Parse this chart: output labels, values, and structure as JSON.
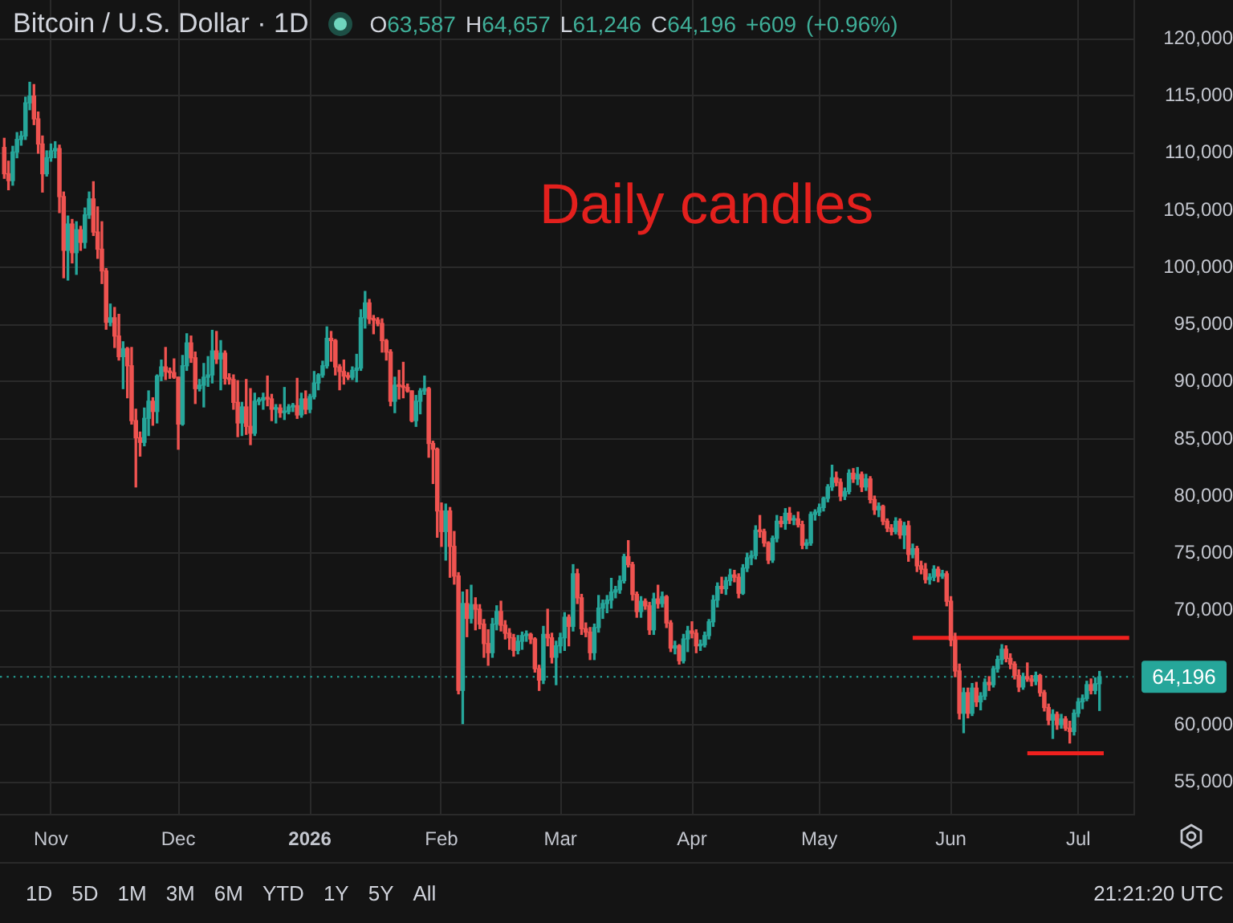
{
  "chart_data": {
    "type": "candlestick",
    "title": "Bitcoin / U.S. Dollar · 1D",
    "subtitle": "O63,587 H64,657 L61,246 C64,196 +609 (+0.96%)",
    "x": [
      "2025-10-21",
      "2025-10-22",
      "2025-10-23",
      "2025-10-24",
      "2025-10-25",
      "2025-10-26",
      "2025-10-27",
      "2025-10-28",
      "2025-10-29",
      "2025-10-30",
      "2025-10-31",
      "2025-11-01",
      "2025-11-02",
      "2025-11-03",
      "2025-11-04",
      "2025-11-05",
      "2025-11-06",
      "2025-11-07",
      "2025-11-08",
      "2025-11-09",
      "2025-11-10",
      "2025-11-11",
      "2025-11-12",
      "2025-11-13",
      "2025-11-14",
      "2025-11-15",
      "2025-11-16",
      "2025-11-17",
      "2025-11-18",
      "2025-11-19",
      "2025-11-20",
      "2025-11-21",
      "2025-11-22",
      "2025-11-23",
      "2025-11-24",
      "2025-11-25",
      "2025-11-26",
      "2025-11-27",
      "2025-11-28",
      "2025-11-29",
      "2025-11-30",
      "2025-12-01",
      "2025-12-02",
      "2025-12-03",
      "2025-12-04",
      "2025-12-05",
      "2025-12-06",
      "2025-12-07",
      "2025-12-08",
      "2025-12-09",
      "2025-12-10",
      "2025-12-11",
      "2025-12-12",
      "2025-12-13",
      "2025-12-14",
      "2025-12-15",
      "2025-12-16",
      "2025-12-17",
      "2025-12-18",
      "2025-12-19",
      "2025-12-20",
      "2025-12-21",
      "2025-12-22",
      "2025-12-23",
      "2025-12-24",
      "2025-12-25",
      "2025-12-26",
      "2025-12-27",
      "2025-12-28",
      "2025-12-29",
      "2025-12-30",
      "2025-12-31",
      "2026-01-01",
      "2026-01-02",
      "2026-01-03",
      "2026-01-04",
      "2026-01-05",
      "2026-01-06",
      "2026-01-07",
      "2026-01-08",
      "2026-01-09",
      "2026-01-10",
      "2026-01-11",
      "2026-01-12",
      "2026-01-13",
      "2026-01-14",
      "2026-01-15",
      "2026-01-16",
      "2026-01-17",
      "2026-01-18",
      "2026-01-19",
      "2026-01-20",
      "2026-01-21",
      "2026-01-22",
      "2026-01-23",
      "2026-01-24",
      "2026-01-25",
      "2026-01-26",
      "2026-01-27",
      "2026-01-28",
      "2026-01-29",
      "2026-01-30",
      "2026-01-31",
      "2026-02-01",
      "2026-02-02",
      "2026-02-03",
      "2026-02-04",
      "2026-02-05",
      "2026-02-06",
      "2026-02-07",
      "2026-02-08",
      "2026-02-09",
      "2026-02-10",
      "2026-02-11",
      "2026-02-12",
      "2026-02-13",
      "2026-02-14",
      "2026-02-15",
      "2026-02-16",
      "2026-02-17",
      "2026-02-18",
      "2026-02-19",
      "2026-02-20",
      "2026-02-21",
      "2026-02-22",
      "2026-02-23",
      "2026-02-24",
      "2026-02-25",
      "2026-02-26",
      "2026-02-27",
      "2026-02-28",
      "2026-03-01",
      "2026-03-02",
      "2026-03-03",
      "2026-03-04",
      "2026-03-05",
      "2026-03-06",
      "2026-03-07",
      "2026-03-08",
      "2026-03-09",
      "2026-03-10",
      "2026-03-11",
      "2026-03-12",
      "2026-03-13",
      "2026-03-14",
      "2026-03-15",
      "2026-03-16",
      "2026-03-17",
      "2026-03-18",
      "2026-03-19",
      "2026-03-20",
      "2026-03-21",
      "2026-03-22",
      "2026-03-23",
      "2026-03-24",
      "2026-03-25",
      "2026-03-26",
      "2026-03-27",
      "2026-03-28",
      "2026-03-29",
      "2026-03-30",
      "2026-03-31",
      "2026-04-01",
      "2026-04-02",
      "2026-04-03",
      "2026-04-04",
      "2026-04-05",
      "2026-04-06",
      "2026-04-07",
      "2026-04-08",
      "2026-04-09",
      "2026-04-10",
      "2026-04-11",
      "2026-04-12",
      "2026-04-13",
      "2026-04-14",
      "2026-04-15",
      "2026-04-16",
      "2026-04-17",
      "2026-04-18",
      "2026-04-19",
      "2026-04-20",
      "2026-04-21",
      "2026-04-22",
      "2026-04-23",
      "2026-04-24",
      "2026-04-25",
      "2026-04-26",
      "2026-04-27",
      "2026-04-28",
      "2026-04-29",
      "2026-04-30",
      "2026-05-01",
      "2026-05-02",
      "2026-05-03",
      "2026-05-04",
      "2026-05-05",
      "2026-05-06",
      "2026-05-07",
      "2026-05-08",
      "2026-05-09",
      "2026-05-10",
      "2026-05-11",
      "2026-05-12",
      "2026-05-13",
      "2026-05-14",
      "2026-05-15",
      "2026-05-16",
      "2026-05-17",
      "2026-05-18",
      "2026-05-19",
      "2026-05-20",
      "2026-05-21",
      "2026-05-22",
      "2026-05-23",
      "2026-05-24",
      "2026-05-25",
      "2026-05-26",
      "2026-05-27",
      "2026-05-28",
      "2026-05-29",
      "2026-05-30",
      "2026-05-31",
      "2026-06-01",
      "2026-06-02",
      "2026-06-03",
      "2026-06-04",
      "2026-06-05",
      "2026-06-06",
      "2026-06-07",
      "2026-06-08",
      "2026-06-09",
      "2026-06-10",
      "2026-06-11",
      "2026-06-12",
      "2026-06-13",
      "2026-06-14",
      "2026-06-15",
      "2026-06-16",
      "2026-06-17",
      "2026-06-18",
      "2026-06-19",
      "2026-06-20",
      "2026-06-21",
      "2026-06-22",
      "2026-06-23",
      "2026-06-24",
      "2026-06-25",
      "2026-06-26",
      "2026-06-27",
      "2026-06-28",
      "2026-06-29",
      "2026-06-30",
      "2026-07-01",
      "2026-07-02",
      "2026-07-03",
      "2026-07-04",
      "2026-07-05",
      "2026-07-06"
    ],
    "ohlc": [
      [
        110500,
        111300,
        107800,
        108200
      ],
      [
        108200,
        109300,
        106800,
        107600
      ],
      [
        107600,
        110600,
        107200,
        110100
      ],
      [
        110100,
        111800,
        109600,
        111200
      ],
      [
        111200,
        111900,
        110700,
        111500
      ],
      [
        111500,
        114900,
        111200,
        114400
      ],
      [
        114400,
        116200,
        113800,
        115000
      ],
      [
        115000,
        116000,
        112500,
        113000
      ],
      [
        113000,
        113600,
        110000,
        110800
      ],
      [
        110800,
        111500,
        106600,
        108200
      ],
      [
        108200,
        110200,
        108000,
        109600
      ],
      [
        109600,
        110800,
        109300,
        110200
      ],
      [
        110200,
        111000,
        109600,
        110400
      ],
      [
        110400,
        110700,
        104800,
        106200
      ],
      [
        106200,
        106600,
        99100,
        101500
      ],
      [
        101500,
        104500,
        98900,
        103800
      ],
      [
        103800,
        104200,
        100400,
        101300
      ],
      [
        101300,
        104000,
        99400,
        103300
      ],
      [
        103300,
        103600,
        101500,
        102200
      ],
      [
        102200,
        105200,
        101700,
        104600
      ],
      [
        104600,
        106600,
        104300,
        106000
      ],
      [
        106000,
        107500,
        102800,
        103100
      ],
      [
        103100,
        105300,
        100800,
        101600
      ],
      [
        101600,
        104000,
        98600,
        99700
      ],
      [
        99700,
        99900,
        94600,
        95200
      ],
      [
        95200,
        96800,
        94900,
        95600
      ],
      [
        95600,
        96500,
        93000,
        94000
      ],
      [
        94000,
        95900,
        91900,
        92200
      ],
      [
        92200,
        93500,
        89400,
        92900
      ],
      [
        92900,
        93000,
        88600,
        91400
      ],
      [
        91400,
        93000,
        86300,
        86600
      ],
      [
        86600,
        87600,
        80800,
        85100
      ],
      [
        85100,
        85600,
        83500,
        84700
      ],
      [
        84700,
        87700,
        84400,
        86800
      ],
      [
        86800,
        89200,
        85300,
        88300
      ],
      [
        88300,
        88600,
        86200,
        87400
      ],
      [
        87400,
        90600,
        86400,
        90500
      ],
      [
        90500,
        91900,
        90100,
        91300
      ],
      [
        91300,
        93000,
        90200,
        90900
      ],
      [
        90900,
        91200,
        90300,
        90800
      ],
      [
        90800,
        92000,
        90300,
        90400
      ],
      [
        90400,
        90400,
        84100,
        86300
      ],
      [
        86300,
        92300,
        86200,
        91400
      ],
      [
        91400,
        94200,
        91000,
        93400
      ],
      [
        93400,
        94000,
        91700,
        92100
      ],
      [
        92100,
        92600,
        88100,
        89400
      ],
      [
        89400,
        90200,
        89200,
        89700
      ],
      [
        89700,
        91600,
        87800,
        90400
      ],
      [
        90400,
        92200,
        89600,
        90600
      ],
      [
        90600,
        94500,
        89900,
        92700
      ],
      [
        92700,
        94400,
        91600,
        92000
      ],
      [
        92000,
        93600,
        89300,
        92500
      ],
      [
        92500,
        92700,
        89800,
        90300
      ],
      [
        90300,
        90700,
        89800,
        90200
      ],
      [
        90200,
        90600,
        87600,
        88200
      ],
      [
        88200,
        90100,
        85200,
        86400
      ],
      [
        86400,
        88200,
        85300,
        87800
      ],
      [
        87800,
        90200,
        85400,
        86100
      ],
      [
        86100,
        89400,
        84500,
        85500
      ],
      [
        85500,
        89000,
        85300,
        88300
      ],
      [
        88300,
        88600,
        88000,
        88400
      ],
      [
        88400,
        89000,
        87600,
        88600
      ],
      [
        88600,
        90500,
        87900,
        88500
      ],
      [
        88500,
        88900,
        86600,
        87600
      ],
      [
        87600,
        88000,
        86400,
        87700
      ],
      [
        87700,
        88000,
        86900,
        87300
      ],
      [
        87300,
        89500,
        86700,
        87400
      ],
      [
        87400,
        88000,
        87200,
        87800
      ],
      [
        87800,
        88100,
        87400,
        87900
      ],
      [
        87900,
        90300,
        86800,
        87100
      ],
      [
        87100,
        89000,
        86900,
        88500
      ],
      [
        88500,
        89200,
        87200,
        87600
      ],
      [
        87600,
        88900,
        87300,
        88700
      ],
      [
        88700,
        90900,
        88500,
        89900
      ],
      [
        89900,
        90700,
        89300,
        90600
      ],
      [
        90600,
        91800,
        90400,
        91400
      ],
      [
        91400,
        94800,
        91200,
        93800
      ],
      [
        93800,
        94400,
        91800,
        93600
      ],
      [
        93600,
        93700,
        90600,
        91300
      ],
      [
        91300,
        91500,
        89300,
        90900
      ],
      [
        90900,
        91900,
        89800,
        90500
      ],
      [
        90500,
        90800,
        90200,
        90400
      ],
      [
        90400,
        91300,
        90200,
        91000
      ],
      [
        91000,
        92400,
        90000,
        91200
      ],
      [
        91200,
        96300,
        91000,
        95600
      ],
      [
        95600,
        97900,
        94700,
        96900
      ],
      [
        96900,
        97200,
        95100,
        95500
      ],
      [
        95500,
        95800,
        94200,
        95400
      ],
      [
        95400,
        95600,
        94900,
        95100
      ],
      [
        95100,
        95500,
        92600,
        93600
      ],
      [
        93600,
        93700,
        91900,
        92600
      ],
      [
        92600,
        92800,
        87900,
        88300
      ],
      [
        88300,
        90400,
        87300,
        89700
      ],
      [
        89700,
        91000,
        88500,
        89600
      ],
      [
        89600,
        91700,
        88600,
        89500
      ],
      [
        89500,
        89800,
        89100,
        89200
      ],
      [
        89200,
        89200,
        86500,
        86600
      ],
      [
        86600,
        88800,
        86100,
        88300
      ],
      [
        88300,
        89400,
        87200,
        89200
      ],
      [
        89200,
        90500,
        88900,
        89400
      ],
      [
        89400,
        89500,
        83400,
        84600
      ],
      [
        84600,
        84800,
        81100,
        84100
      ],
      [
        84100,
        84200,
        76400,
        78700
      ],
      [
        78700,
        79400,
        75600,
        76900
      ],
      [
        76900,
        79300,
        74400,
        78700
      ],
      [
        78700,
        79000,
        72900,
        75600
      ],
      [
        75600,
        76900,
        72300,
        73000
      ],
      [
        73000,
        73300,
        62700,
        63000
      ],
      [
        63000,
        71600,
        60100,
        70600
      ],
      [
        70600,
        71800,
        67700,
        69300
      ],
      [
        69300,
        72200,
        68900,
        70500
      ],
      [
        70500,
        71100,
        68300,
        70100
      ],
      [
        70100,
        70500,
        68400,
        68800
      ],
      [
        68800,
        69200,
        65900,
        67100
      ],
      [
        67100,
        68300,
        65200,
        66300
      ],
      [
        66300,
        69300,
        65900,
        68800
      ],
      [
        68800,
        70400,
        68300,
        69900
      ],
      [
        69900,
        70800,
        68200,
        68700
      ],
      [
        68700,
        69100,
        67500,
        68000
      ],
      [
        68000,
        68400,
        66600,
        67600
      ],
      [
        67600,
        67900,
        66000,
        66500
      ],
      [
        66500,
        67800,
        66200,
        67300
      ],
      [
        67300,
        68100,
        66600,
        67800
      ],
      [
        67800,
        68200,
        67300,
        67900
      ],
      [
        67900,
        68000,
        67100,
        67500
      ],
      [
        67500,
        67600,
        64600,
        64900
      ],
      [
        64900,
        65200,
        63000,
        63900
      ],
      [
        63900,
        68600,
        63600,
        67900
      ],
      [
        67900,
        70100,
        66900,
        67600
      ],
      [
        67600,
        68000,
        65400,
        65900
      ],
      [
        65900,
        67300,
        63500,
        66900
      ],
      [
        66900,
        68000,
        66300,
        67600
      ],
      [
        67600,
        69800,
        66500,
        69400
      ],
      [
        69400,
        69600,
        66900,
        68600
      ],
      [
        68600,
        74000,
        68200,
        73200
      ],
      [
        73200,
        73600,
        70600,
        71100
      ],
      [
        71100,
        71400,
        67900,
        68400
      ],
      [
        68400,
        68900,
        67700,
        68100
      ],
      [
        68100,
        68500,
        65700,
        66300
      ],
      [
        66300,
        68800,
        65700,
        68500
      ],
      [
        68500,
        71300,
        68100,
        70200
      ],
      [
        70200,
        70900,
        69300,
        70600
      ],
      [
        70600,
        71300,
        69800,
        70900
      ],
      [
        70900,
        72800,
        70200,
        71600
      ],
      [
        71600,
        72100,
        71100,
        71800
      ],
      [
        71800,
        73000,
        71500,
        72600
      ],
      [
        72600,
        74900,
        72400,
        74700
      ],
      [
        74700,
        76100,
        73800,
        74000
      ],
      [
        74000,
        74200,
        70900,
        71400
      ],
      [
        71400,
        71600,
        69400,
        69900
      ],
      [
        69900,
        71200,
        69400,
        70800
      ],
      [
        70800,
        71000,
        70100,
        70400
      ],
      [
        70400,
        70700,
        67900,
        68300
      ],
      [
        68300,
        71500,
        67900,
        71000
      ],
      [
        71000,
        72200,
        70200,
        70600
      ],
      [
        70600,
        71600,
        70300,
        71200
      ],
      [
        71200,
        71300,
        68500,
        68900
      ],
      [
        68900,
        69100,
        66400,
        66700
      ],
      [
        66700,
        67300,
        66200,
        66900
      ],
      [
        66900,
        67000,
        65300,
        65600
      ],
      [
        65600,
        67900,
        65400,
        67500
      ],
      [
        67500,
        68600,
        66400,
        68200
      ],
      [
        68200,
        69000,
        67600,
        68000
      ],
      [
        68000,
        68300,
        66300,
        66900
      ],
      [
        66900,
        67400,
        66500,
        67000
      ],
      [
        67000,
        68100,
        66800,
        67800
      ],
      [
        67800,
        69200,
        67500,
        69000
      ],
      [
        69000,
        71300,
        68600,
        70900
      ],
      [
        70900,
        72400,
        70300,
        72100
      ],
      [
        72100,
        72900,
        71500,
        71900
      ],
      [
        71900,
        72900,
        71400,
        72600
      ],
      [
        72600,
        73600,
        72200,
        73100
      ],
      [
        73100,
        73500,
        72500,
        72900
      ],
      [
        72900,
        73200,
        71100,
        71500
      ],
      [
        71500,
        74000,
        71400,
        73700
      ],
      [
        73700,
        75000,
        73400,
        74600
      ],
      [
        74600,
        75200,
        74000,
        74800
      ],
      [
        74800,
        77400,
        74500,
        77000
      ],
      [
        77000,
        78300,
        76400,
        76900
      ],
      [
        76900,
        77100,
        75600,
        75900
      ],
      [
        75900,
        76000,
        74100,
        74400
      ],
      [
        74400,
        76500,
        74200,
        76300
      ],
      [
        76300,
        78300,
        76000,
        77800
      ],
      [
        77800,
        78200,
        77300,
        77600
      ],
      [
        77600,
        78900,
        77100,
        78500
      ],
      [
        78500,
        79000,
        77600,
        77900
      ],
      [
        77900,
        78300,
        77500,
        78000
      ],
      [
        78000,
        78600,
        77300,
        77500
      ],
      [
        77500,
        77800,
        75400,
        75700
      ],
      [
        75700,
        76200,
        75400,
        75900
      ],
      [
        75900,
        78600,
        75700,
        78400
      ],
      [
        78400,
        78800,
        77900,
        78600
      ],
      [
        78600,
        79300,
        78300,
        79000
      ],
      [
        79000,
        79900,
        78700,
        79800
      ],
      [
        79800,
        81000,
        79500,
        80800
      ],
      [
        80800,
        82700,
        80500,
        81600
      ],
      [
        81600,
        82100,
        80900,
        81200
      ],
      [
        81200,
        81500,
        79600,
        80000
      ],
      [
        80000,
        80700,
        79700,
        80400
      ],
      [
        80400,
        82300,
        80200,
        82000
      ],
      [
        82000,
        82400,
        81200,
        81500
      ],
      [
        81500,
        82500,
        81000,
        81900
      ],
      [
        81900,
        82100,
        80400,
        80800
      ],
      [
        80800,
        81900,
        80500,
        81500
      ],
      [
        81500,
        81700,
        79400,
        79700
      ],
      [
        79700,
        80000,
        78400,
        78800
      ],
      [
        78800,
        79400,
        78200,
        79100
      ],
      [
        79100,
        79200,
        77500,
        77800
      ],
      [
        77800,
        78000,
        76900,
        77200
      ],
      [
        77200,
        77500,
        76600,
        76900
      ],
      [
        76900,
        78100,
        76700,
        77800
      ],
      [
        77800,
        78000,
        76300,
        76600
      ],
      [
        76600,
        77700,
        75400,
        77400
      ],
      [
        77400,
        77800,
        74300,
        74900
      ],
      [
        74900,
        75800,
        74600,
        75400
      ],
      [
        75400,
        75600,
        73400,
        73900
      ],
      [
        73900,
        74300,
        73200,
        73600
      ],
      [
        73600,
        74100,
        72400,
        72700
      ],
      [
        72700,
        73200,
        72300,
        72900
      ],
      [
        72900,
        73900,
        72600,
        73600
      ],
      [
        73600,
        73800,
        72500,
        73000
      ],
      [
        73000,
        73500,
        72800,
        73200
      ],
      [
        73200,
        73400,
        70400,
        70800
      ],
      [
        70800,
        71200,
        66900,
        67400
      ],
      [
        67400,
        68000,
        64200,
        64700
      ],
      [
        64700,
        65300,
        60500,
        61000
      ],
      [
        61000,
        63200,
        59300,
        62800
      ],
      [
        62800,
        63200,
        60600,
        61000
      ],
      [
        61000,
        63600,
        60800,
        63200
      ],
      [
        63200,
        63700,
        61600,
        62000
      ],
      [
        62000,
        62800,
        61300,
        62500
      ],
      [
        62500,
        64000,
        62200,
        63700
      ],
      [
        63700,
        64200,
        63000,
        63500
      ],
      [
        63500,
        65100,
        63300,
        64900
      ],
      [
        64900,
        66000,
        64600,
        65700
      ],
      [
        65700,
        67000,
        65300,
        66600
      ],
      [
        66600,
        66900,
        65500,
        65800
      ],
      [
        65800,
        66200,
        64900,
        65300
      ],
      [
        65300,
        65500,
        64000,
        64300
      ],
      [
        64300,
        64800,
        62900,
        63300
      ],
      [
        63300,
        64500,
        63100,
        64200
      ],
      [
        64200,
        65400,
        63800,
        64000
      ],
      [
        64000,
        64300,
        63400,
        63800
      ],
      [
        63800,
        64600,
        63500,
        64300
      ],
      [
        64300,
        64400,
        62500,
        62800
      ],
      [
        62800,
        63000,
        61200,
        61500
      ],
      [
        61500,
        61800,
        60000,
        60400
      ],
      [
        60400,
        61300,
        58800,
        60900
      ],
      [
        60900,
        61100,
        59600,
        60000
      ],
      [
        60000,
        60900,
        59700,
        60500
      ],
      [
        60500,
        60700,
        59500,
        59700
      ],
      [
        59700,
        60300,
        58400,
        59400
      ],
      [
        59400,
        61300,
        59100,
        61000
      ],
      [
        61000,
        62300,
        60700,
        62000
      ],
      [
        62000,
        62600,
        61400,
        62300
      ],
      [
        62300,
        63800,
        62100,
        63500
      ],
      [
        63500,
        64000,
        62700,
        63000
      ],
      [
        63000,
        64100,
        62700,
        63587
      ],
      [
        63587,
        64657,
        61246,
        64196
      ]
    ],
    "colors": [
      "#ef5350",
      "#ef5350",
      "#26a69a",
      "#26a69a",
      "#26a69a",
      "#26a69a",
      "#26a69a",
      "#ef5350",
      "#ef5350",
      "#ef5350",
      "#26a69a",
      "#26a69a",
      "#26a69a",
      "#ef5350",
      "#ef5350",
      "#26a69a",
      "#ef5350",
      "#26a69a",
      "#ef5350",
      "#26a69a",
      "#26a69a",
      "#ef5350",
      "#ef5350",
      "#ef5350",
      "#ef5350",
      "#26a69a",
      "#ef5350",
      "#ef5350",
      "#26a69a",
      "#ef5350",
      "#ef5350",
      "#ef5350",
      "#ef5350",
      "#26a69a",
      "#26a69a",
      "#ef5350",
      "#26a69a",
      "#26a69a",
      "#ef5350",
      "#ef5350",
      "#ef5350",
      "#ef5350",
      "#26a69a",
      "#26a69a",
      "#ef5350",
      "#ef5350",
      "#26a69a",
      "#26a69a",
      "#26a69a",
      "#26a69a",
      "#ef5350",
      "#26a69a",
      "#ef5350",
      "#ef5350",
      "#ef5350",
      "#ef5350",
      "#26a69a",
      "#ef5350",
      "#ef5350",
      "#26a69a",
      "#26a69a",
      "#26a69a",
      "#ef5350",
      "#ef5350",
      "#26a69a",
      "#ef5350",
      "#26a69a",
      "#26a69a",
      "#26a69a",
      "#ef5350",
      "#26a69a",
      "#ef5350",
      "#26a69a",
      "#26a69a",
      "#26a69a",
      "#26a69a",
      "#26a69a",
      "#ef5350",
      "#ef5350",
      "#ef5350",
      "#ef5350",
      "#ef5350",
      "#26a69a",
      "#26a69a",
      "#26a69a",
      "#26a69a",
      "#ef5350",
      "#ef5350",
      "#ef5350",
      "#ef5350",
      "#ef5350",
      "#ef5350",
      "#26a69a",
      "#ef5350",
      "#ef5350",
      "#ef5350",
      "#ef5350",
      "#26a69a",
      "#26a69a",
      "#26a69a",
      "#ef5350",
      "#ef5350",
      "#ef5350",
      "#ef5350",
      "#26a69a",
      "#ef5350",
      "#ef5350",
      "#ef5350",
      "#26a69a",
      "#ef5350",
      "#26a69a",
      "#ef5350",
      "#ef5350",
      "#ef5350",
      "#ef5350",
      "#26a69a",
      "#26a69a",
      "#ef5350",
      "#ef5350",
      "#ef5350",
      "#ef5350",
      "#26a69a",
      "#26a69a",
      "#26a69a",
      "#ef5350",
      "#ef5350",
      "#ef5350",
      "#26a69a",
      "#ef5350",
      "#ef5350",
      "#26a69a",
      "#26a69a",
      "#26a69a",
      "#ef5350",
      "#26a69a",
      "#ef5350",
      "#ef5350",
      "#ef5350",
      "#ef5350",
      "#26a69a",
      "#26a69a",
      "#26a69a",
      "#26a69a",
      "#26a69a",
      "#26a69a",
      "#26a69a",
      "#26a69a",
      "#ef5350",
      "#ef5350",
      "#ef5350",
      "#26a69a",
      "#ef5350",
      "#ef5350",
      "#26a69a",
      "#ef5350",
      "#26a69a",
      "#ef5350",
      "#ef5350",
      "#26a69a",
      "#ef5350",
      "#26a69a",
      "#26a69a",
      "#ef5350",
      "#ef5350",
      "#26a69a",
      "#26a69a",
      "#26a69a",
      "#26a69a",
      "#26a69a",
      "#ef5350",
      "#26a69a",
      "#26a69a",
      "#ef5350",
      "#ef5350",
      "#26a69a",
      "#26a69a",
      "#26a69a",
      "#26a69a",
      "#ef5350",
      "#ef5350",
      "#ef5350",
      "#26a69a",
      "#26a69a",
      "#ef5350",
      "#26a69a",
      "#ef5350",
      "#26a69a",
      "#ef5350",
      "#ef5350",
      "#26a69a",
      "#26a69a",
      "#26a69a",
      "#26a69a",
      "#26a69a",
      "#26a69a",
      "#26a69a",
      "#ef5350",
      "#ef5350",
      "#26a69a",
      "#26a69a",
      "#ef5350",
      "#26a69a",
      "#ef5350",
      "#26a69a",
      "#ef5350",
      "#ef5350",
      "#26a69a",
      "#ef5350",
      "#ef5350",
      "#ef5350",
      "#26a69a",
      "#ef5350",
      "#26a69a",
      "#ef5350",
      "#26a69a",
      "#ef5350",
      "#ef5350",
      "#ef5350",
      "#26a69a",
      "#26a69a",
      "#ef5350",
      "#26a69a",
      "#ef5350",
      "#ef5350",
      "#ef5350",
      "#ef5350",
      "#26a69a",
      "#ef5350",
      "#26a69a",
      "#ef5350",
      "#26a69a",
      "#26a69a",
      "#ef5350",
      "#26a69a",
      "#26a69a",
      "#26a69a",
      "#ef5350",
      "#ef5350",
      "#ef5350",
      "#ef5350",
      "#26a69a",
      "#ef5350",
      "#ef5350",
      "#26a69a",
      "#ef5350",
      "#ef5350",
      "#ef5350",
      "#26a69a",
      "#ef5350",
      "#26a69a",
      "#ef5350",
      "#ef5350",
      "#26a69a",
      "#26a69a",
      "#26a69a",
      "#26a69a",
      "#ef5350",
      "#26a69a",
      "#26a69a"
    ],
    "series": [
      {
        "type": "line",
        "color": "#f0201e",
        "x": [
          "2026-05-23",
          "2026-07-13"
        ],
        "values": [
          67600,
          67600
        ]
      },
      {
        "type": "line",
        "color": "#f0201e",
        "x": [
          "2026-06-19",
          "2026-07-07"
        ],
        "values": [
          57500,
          57500
        ]
      }
    ],
    "ref_lines": [
      {
        "axis": "y",
        "value": 64196,
        "label": "64,196",
        "color": "#26a69a",
        "line_style": "dotted"
      }
    ],
    "xlim": [
      "2025-10-20",
      "2026-07-14"
    ],
    "xticks": [
      {
        "value": "2025-11-01",
        "label": "Nov"
      },
      {
        "value": "2025-12-01",
        "label": "Dec"
      },
      {
        "value": "2026-01-01",
        "label": "2026"
      },
      {
        "value": "2026-02-01",
        "label": "Feb"
      },
      {
        "value": "2026-03-01",
        "label": "Mar"
      },
      {
        "value": "2026-04-01",
        "label": "Apr"
      },
      {
        "value": "2026-05-01",
        "label": "May"
      },
      {
        "value": "2026-06-01",
        "label": "Jun"
      },
      {
        "value": "2026-07-01",
        "label": "Jul"
      }
    ],
    "ylim": [
      52200,
      123400
    ],
    "yticks": [
      {
        "value": 55000,
        "label": "55,000"
      },
      {
        "value": 60000,
        "label": "60,000"
      },
      {
        "value": 65000,
        "label": null
      },
      {
        "value": 70000,
        "label": "70,000"
      },
      {
        "value": 75000,
        "label": "75,000"
      },
      {
        "value": 80000,
        "label": "80,000"
      },
      {
        "value": 85000,
        "label": "85,000"
      },
      {
        "value": 90000,
        "label": "90,000"
      },
      {
        "value": 95000,
        "label": "95,000"
      },
      {
        "value": 100000,
        "label": "100,000"
      },
      {
        "value": 105000,
        "label": "105,000"
      },
      {
        "value": 110000,
        "label": "110,000"
      },
      {
        "value": 115000,
        "label": "115,000"
      },
      {
        "value": 120000,
        "label": "120,000"
      }
    ],
    "grid": true,
    "annotations": [
      "Daily candles",
      "1D",
      "5D",
      "1M",
      "3M",
      "6M",
      "YTD",
      "1Y",
      "5Y",
      "All",
      "21:21:20 UTC"
    ]
  }
}
